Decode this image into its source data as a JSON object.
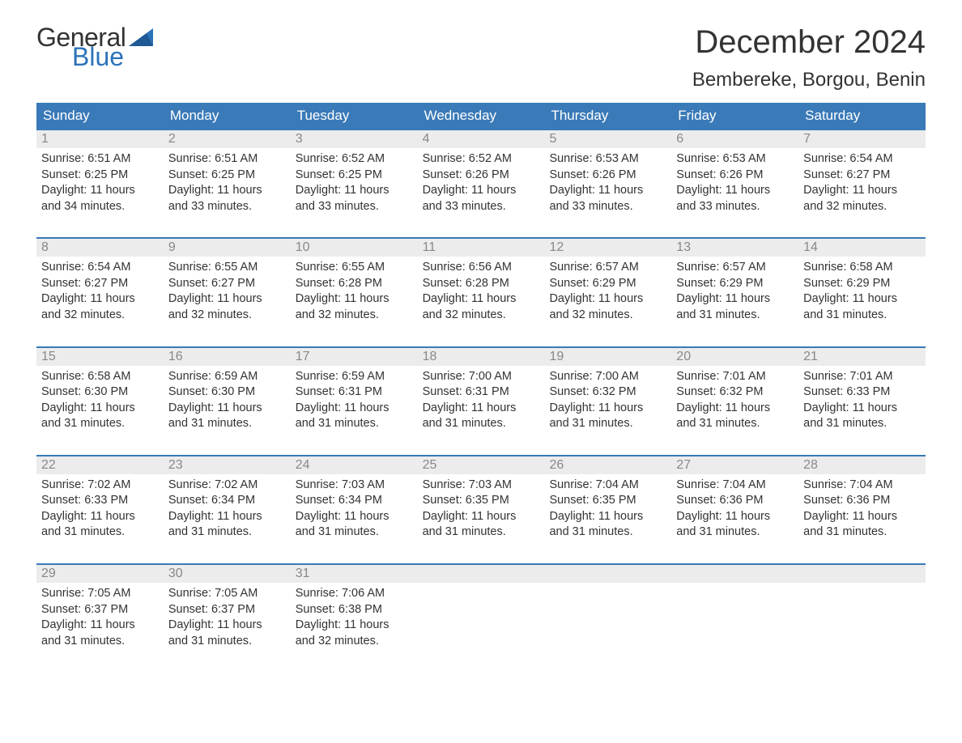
{
  "logo": {
    "text_general": "General",
    "text_blue": "Blue",
    "general_color": "#333333",
    "blue_color": "#2b73b8"
  },
  "header": {
    "month_title": "December 2024",
    "location": "Bembereke, Borgou, Benin"
  },
  "colors": {
    "header_bg": "#3a7ab8",
    "header_text": "#ffffff",
    "daynum_bg": "#ececec",
    "daynum_text": "#888888",
    "body_text": "#333333",
    "week_border": "#3a7ab8",
    "page_bg": "#ffffff"
  },
  "fonts": {
    "title_size": 40,
    "location_size": 24,
    "weekday_size": 17,
    "daynum_size": 16,
    "body_size": 14.5
  },
  "weekdays": [
    "Sunday",
    "Monday",
    "Tuesday",
    "Wednesday",
    "Thursday",
    "Friday",
    "Saturday"
  ],
  "labels": {
    "sunrise": "Sunrise:",
    "sunset": "Sunset:",
    "daylight": "Daylight:"
  },
  "days": [
    {
      "n": 1,
      "sunrise": "6:51 AM",
      "sunset": "6:25 PM",
      "daylight1": "11 hours",
      "daylight2": "and 34 minutes."
    },
    {
      "n": 2,
      "sunrise": "6:51 AM",
      "sunset": "6:25 PM",
      "daylight1": "11 hours",
      "daylight2": "and 33 minutes."
    },
    {
      "n": 3,
      "sunrise": "6:52 AM",
      "sunset": "6:25 PM",
      "daylight1": "11 hours",
      "daylight2": "and 33 minutes."
    },
    {
      "n": 4,
      "sunrise": "6:52 AM",
      "sunset": "6:26 PM",
      "daylight1": "11 hours",
      "daylight2": "and 33 minutes."
    },
    {
      "n": 5,
      "sunrise": "6:53 AM",
      "sunset": "6:26 PM",
      "daylight1": "11 hours",
      "daylight2": "and 33 minutes."
    },
    {
      "n": 6,
      "sunrise": "6:53 AM",
      "sunset": "6:26 PM",
      "daylight1": "11 hours",
      "daylight2": "and 33 minutes."
    },
    {
      "n": 7,
      "sunrise": "6:54 AM",
      "sunset": "6:27 PM",
      "daylight1": "11 hours",
      "daylight2": "and 32 minutes."
    },
    {
      "n": 8,
      "sunrise": "6:54 AM",
      "sunset": "6:27 PM",
      "daylight1": "11 hours",
      "daylight2": "and 32 minutes."
    },
    {
      "n": 9,
      "sunrise": "6:55 AM",
      "sunset": "6:27 PM",
      "daylight1": "11 hours",
      "daylight2": "and 32 minutes."
    },
    {
      "n": 10,
      "sunrise": "6:55 AM",
      "sunset": "6:28 PM",
      "daylight1": "11 hours",
      "daylight2": "and 32 minutes."
    },
    {
      "n": 11,
      "sunrise": "6:56 AM",
      "sunset": "6:28 PM",
      "daylight1": "11 hours",
      "daylight2": "and 32 minutes."
    },
    {
      "n": 12,
      "sunrise": "6:57 AM",
      "sunset": "6:29 PM",
      "daylight1": "11 hours",
      "daylight2": "and 32 minutes."
    },
    {
      "n": 13,
      "sunrise": "6:57 AM",
      "sunset": "6:29 PM",
      "daylight1": "11 hours",
      "daylight2": "and 31 minutes."
    },
    {
      "n": 14,
      "sunrise": "6:58 AM",
      "sunset": "6:29 PM",
      "daylight1": "11 hours",
      "daylight2": "and 31 minutes."
    },
    {
      "n": 15,
      "sunrise": "6:58 AM",
      "sunset": "6:30 PM",
      "daylight1": "11 hours",
      "daylight2": "and 31 minutes."
    },
    {
      "n": 16,
      "sunrise": "6:59 AM",
      "sunset": "6:30 PM",
      "daylight1": "11 hours",
      "daylight2": "and 31 minutes."
    },
    {
      "n": 17,
      "sunrise": "6:59 AM",
      "sunset": "6:31 PM",
      "daylight1": "11 hours",
      "daylight2": "and 31 minutes."
    },
    {
      "n": 18,
      "sunrise": "7:00 AM",
      "sunset": "6:31 PM",
      "daylight1": "11 hours",
      "daylight2": "and 31 minutes."
    },
    {
      "n": 19,
      "sunrise": "7:00 AM",
      "sunset": "6:32 PM",
      "daylight1": "11 hours",
      "daylight2": "and 31 minutes."
    },
    {
      "n": 20,
      "sunrise": "7:01 AM",
      "sunset": "6:32 PM",
      "daylight1": "11 hours",
      "daylight2": "and 31 minutes."
    },
    {
      "n": 21,
      "sunrise": "7:01 AM",
      "sunset": "6:33 PM",
      "daylight1": "11 hours",
      "daylight2": "and 31 minutes."
    },
    {
      "n": 22,
      "sunrise": "7:02 AM",
      "sunset": "6:33 PM",
      "daylight1": "11 hours",
      "daylight2": "and 31 minutes."
    },
    {
      "n": 23,
      "sunrise": "7:02 AM",
      "sunset": "6:34 PM",
      "daylight1": "11 hours",
      "daylight2": "and 31 minutes."
    },
    {
      "n": 24,
      "sunrise": "7:03 AM",
      "sunset": "6:34 PM",
      "daylight1": "11 hours",
      "daylight2": "and 31 minutes."
    },
    {
      "n": 25,
      "sunrise": "7:03 AM",
      "sunset": "6:35 PM",
      "daylight1": "11 hours",
      "daylight2": "and 31 minutes."
    },
    {
      "n": 26,
      "sunrise": "7:04 AM",
      "sunset": "6:35 PM",
      "daylight1": "11 hours",
      "daylight2": "and 31 minutes."
    },
    {
      "n": 27,
      "sunrise": "7:04 AM",
      "sunset": "6:36 PM",
      "daylight1": "11 hours",
      "daylight2": "and 31 minutes."
    },
    {
      "n": 28,
      "sunrise": "7:04 AM",
      "sunset": "6:36 PM",
      "daylight1": "11 hours",
      "daylight2": "and 31 minutes."
    },
    {
      "n": 29,
      "sunrise": "7:05 AM",
      "sunset": "6:37 PM",
      "daylight1": "11 hours",
      "daylight2": "and 31 minutes."
    },
    {
      "n": 30,
      "sunrise": "7:05 AM",
      "sunset": "6:37 PM",
      "daylight1": "11 hours",
      "daylight2": "and 31 minutes."
    },
    {
      "n": 31,
      "sunrise": "7:06 AM",
      "sunset": "6:38 PM",
      "daylight1": "11 hours",
      "daylight2": "and 32 minutes."
    }
  ],
  "grid": {
    "columns": 7,
    "rows": 5,
    "start_weekday": 0,
    "total_days": 31
  }
}
